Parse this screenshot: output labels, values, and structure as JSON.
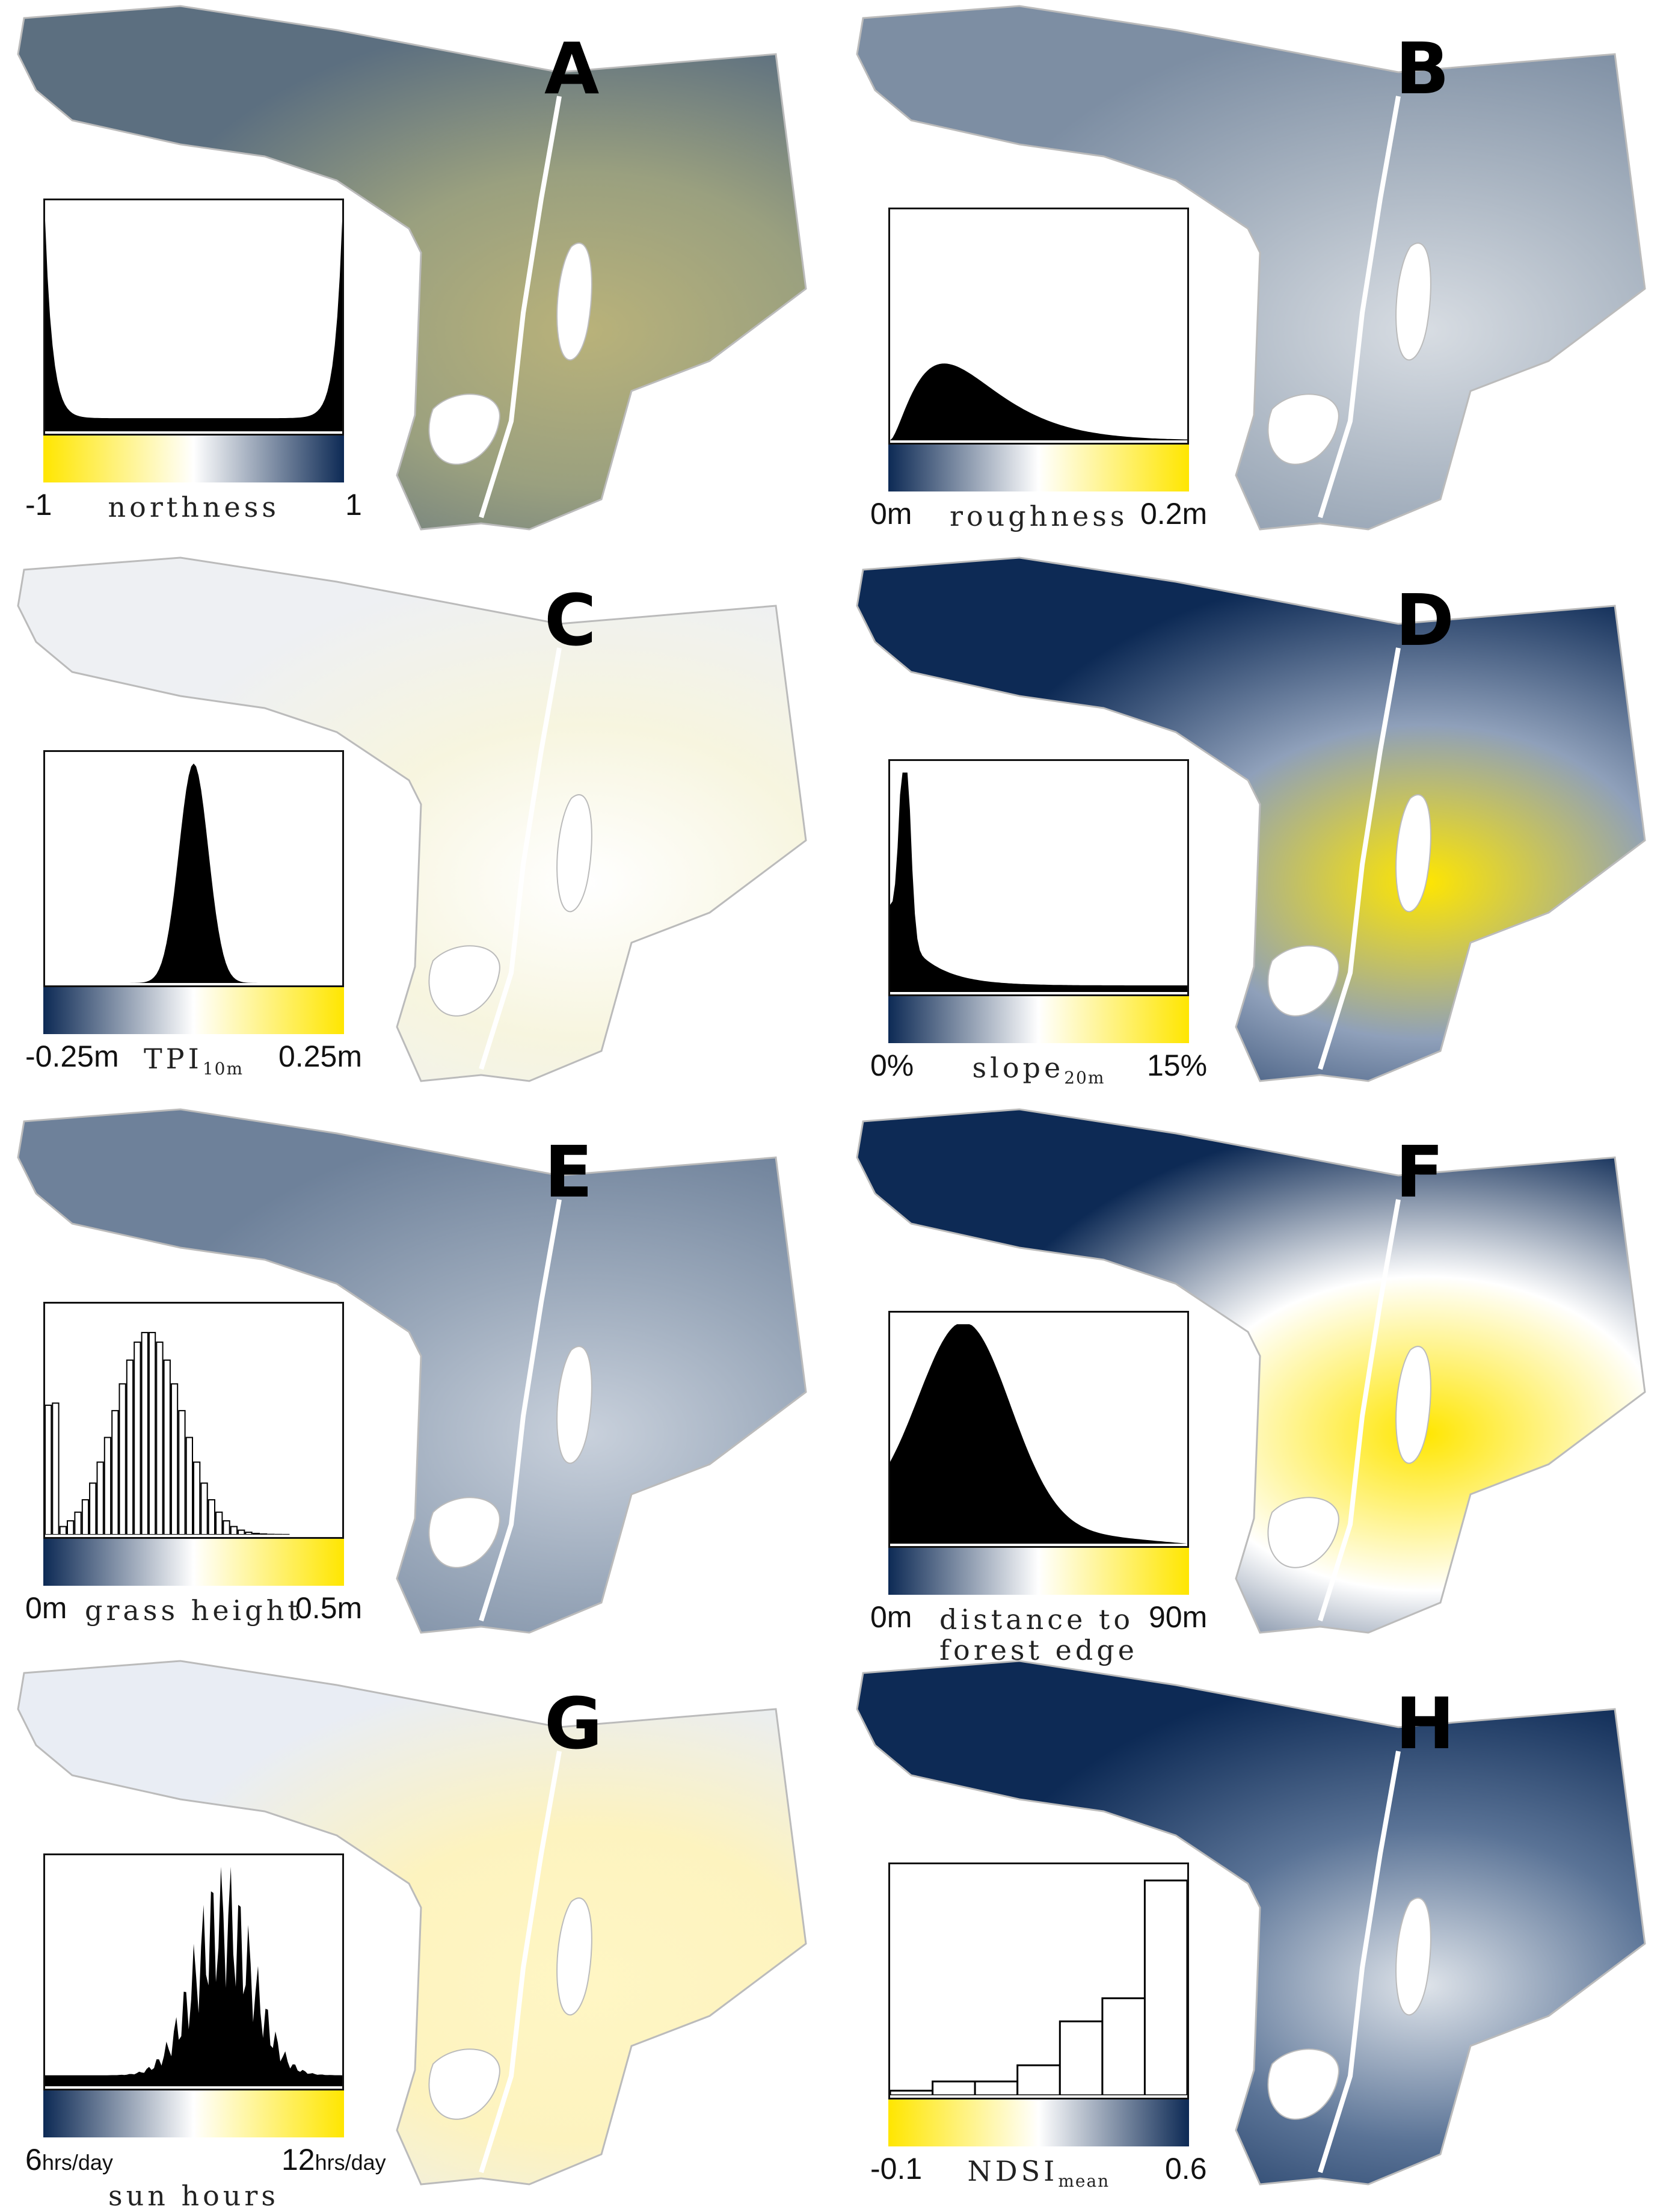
{
  "colors": {
    "navy": "#0d2a55",
    "yellow": "#ffe600",
    "white": "#ffffff",
    "olive": "#b9b27a"
  },
  "panels": [
    {
      "id": "A",
      "letter": "A",
      "tick_min": "-1",
      "tick_max": "1",
      "var_label": "northness",
      "var_sub": "",
      "scale": "yellow-white-navy",
      "hist": "ushape"
    },
    {
      "id": "B",
      "letter": "B",
      "tick_min": "0m",
      "tick_max": "0.2m",
      "var_label": "roughness",
      "var_sub": "",
      "scale": "navy-white-yellow",
      "hist": "rightskew"
    },
    {
      "id": "C",
      "letter": "C",
      "tick_min": "-0.25m",
      "tick_max": "0.25m",
      "var_label": "TPI",
      "var_sub": "10m",
      "scale": "navy-white-yellow",
      "hist": "peak"
    },
    {
      "id": "D",
      "letter": "D",
      "tick_min": "0%",
      "tick_max": "15%",
      "var_label": "slope",
      "var_sub": "20m",
      "scale": "navy-white-yellow",
      "hist": "steepdecay"
    },
    {
      "id": "E",
      "letter": "E",
      "tick_min": "0m",
      "tick_max": "0.5m",
      "var_label": "grass height",
      "var_sub": "",
      "scale": "navy-white-yellow",
      "hist": "barsnormal"
    },
    {
      "id": "F",
      "letter": "F",
      "tick_min": "0m",
      "tick_max": "90m",
      "var_label": "distance to",
      "var_label2": "forest edge",
      "var_sub": "",
      "scale": "navy-white-yellow",
      "hist": "broad"
    },
    {
      "id": "G",
      "letter": "G",
      "tick_min": "6",
      "tick_min_unit": "hrs/day",
      "tick_max": "12",
      "tick_max_unit": "hrs/day",
      "var_label": "sun hours",
      "var_sub": "",
      "scale": "navy-white-yellow",
      "hist": "jagged"
    },
    {
      "id": "H",
      "letter": "H",
      "tick_min": "-0.1",
      "tick_max": "0.6",
      "var_label": "NDSI",
      "var_sub": "mean",
      "scale": "yellow-white-navy",
      "hist": "steps"
    }
  ]
}
